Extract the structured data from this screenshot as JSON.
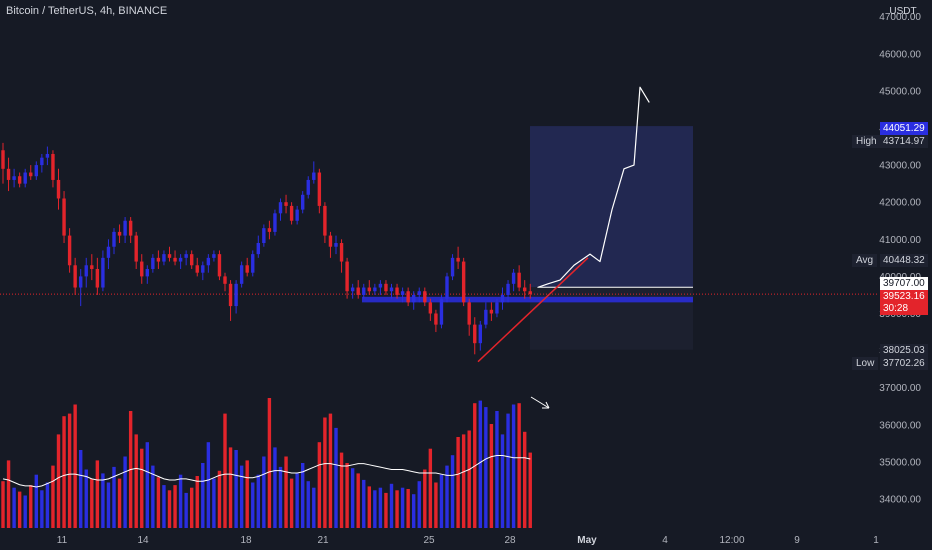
{
  "header": {
    "title": "Bitcoin / TetherUS, 4h, BINANCE",
    "currency": "USDT"
  },
  "price_labels": {
    "top": "44051.29",
    "high_name": "High",
    "high_value": "43714.97",
    "avg_name": "Avg",
    "avg_value": "40448.32",
    "target": "39707.00",
    "current": "39523.16",
    "countdown": "30:28",
    "stop": "38025.03",
    "low_name": "Low",
    "low_value": "37702.26"
  },
  "colors": {
    "background": "#161a25",
    "up": "#2a2ee0",
    "down": "#e3242b",
    "position_box": "#242a56",
    "zone_box": "#2a2ee0",
    "current_line": "#e3242b",
    "white": "#ffffff",
    "volume_ma": "#ffffff"
  },
  "chart_data": {
    "type": "candlestick",
    "symbol": "BTCUSDT",
    "interval": "4h",
    "y_ticks": [
      34000,
      35000,
      36000,
      37000,
      38000,
      39000,
      40000,
      41000,
      42000,
      43000,
      44000,
      45000,
      46000,
      47000
    ],
    "x_ticks": [
      "11",
      "14",
      "18",
      "21",
      "25",
      "28",
      "May",
      "4",
      "12:00",
      "9",
      "1"
    ],
    "current_price": 39523.16,
    "candles": [
      [
        43400,
        43600,
        42500,
        42900
      ],
      [
        42900,
        43200,
        42300,
        42600
      ],
      [
        42600,
        42900,
        42400,
        42700
      ],
      [
        42700,
        42800,
        42400,
        42500
      ],
      [
        42500,
        42900,
        42400,
        42800
      ],
      [
        42800,
        43000,
        42600,
        42700
      ],
      [
        42700,
        43100,
        42600,
        43000
      ],
      [
        43000,
        43300,
        42800,
        43200
      ],
      [
        43200,
        43500,
        43000,
        43300
      ],
      [
        43300,
        43400,
        42400,
        42600
      ],
      [
        42600,
        42900,
        41800,
        42100
      ],
      [
        42100,
        42300,
        40900,
        41100
      ],
      [
        41100,
        41300,
        40100,
        40300
      ],
      [
        40300,
        40500,
        39500,
        39700
      ],
      [
        39700,
        40200,
        39200,
        40000
      ],
      [
        40000,
        40500,
        39700,
        40300
      ],
      [
        40300,
        40600,
        39900,
        40200
      ],
      [
        40200,
        40500,
        39500,
        39700
      ],
      [
        39700,
        40700,
        39600,
        40500
      ],
      [
        40500,
        41000,
        40200,
        40800
      ],
      [
        40800,
        41300,
        40600,
        41200
      ],
      [
        41200,
        41400,
        40900,
        41100
      ],
      [
        41100,
        41600,
        40900,
        41500
      ],
      [
        41500,
        41600,
        40900,
        41100
      ],
      [
        41100,
        41200,
        40200,
        40400
      ],
      [
        40400,
        40600,
        39800,
        40000
      ],
      [
        40000,
        40300,
        39800,
        40200
      ],
      [
        40200,
        40600,
        40100,
        40500
      ],
      [
        40500,
        40700,
        40200,
        40400
      ],
      [
        40400,
        40700,
        40300,
        40600
      ],
      [
        40600,
        40800,
        40400,
        40500
      ],
      [
        40500,
        40700,
        40300,
        40400
      ],
      [
        40400,
        40600,
        40200,
        40500
      ],
      [
        40500,
        40700,
        40300,
        40600
      ],
      [
        40600,
        40700,
        40200,
        40300
      ],
      [
        40300,
        40500,
        40000,
        40100
      ],
      [
        40100,
        40400,
        39900,
        40300
      ],
      [
        40300,
        40600,
        40100,
        40500
      ],
      [
        40500,
        40700,
        40400,
        40600
      ],
      [
        40600,
        40700,
        39900,
        40000
      ],
      [
        40000,
        40100,
        39600,
        39800
      ],
      [
        39800,
        39900,
        38800,
        39200
      ],
      [
        39200,
        39900,
        39000,
        39800
      ],
      [
        39800,
        40400,
        39700,
        40300
      ],
      [
        40300,
        40500,
        40000,
        40100
      ],
      [
        40100,
        40700,
        40000,
        40600
      ],
      [
        40600,
        41100,
        40500,
        40900
      ],
      [
        40900,
        41400,
        40800,
        41300
      ],
      [
        41300,
        41500,
        41000,
        41200
      ],
      [
        41200,
        41800,
        41100,
        41700
      ],
      [
        41700,
        42100,
        41500,
        42000
      ],
      [
        42000,
        42200,
        41700,
        41900
      ],
      [
        41900,
        42000,
        41400,
        41500
      ],
      [
        41500,
        41900,
        41400,
        41800
      ],
      [
        41800,
        42300,
        41700,
        42200
      ],
      [
        42200,
        42700,
        42100,
        42600
      ],
      [
        42600,
        43100,
        42500,
        42800
      ],
      [
        42800,
        42900,
        41700,
        41900
      ],
      [
        41900,
        42000,
        40900,
        41100
      ],
      [
        41100,
        41200,
        40500,
        40800
      ],
      [
        40800,
        41100,
        40600,
        40900
      ],
      [
        40900,
        41000,
        40100,
        40400
      ],
      [
        40400,
        40500,
        39400,
        39600
      ],
      [
        39600,
        39800,
        39400,
        39700
      ],
      [
        39700,
        39900,
        39400,
        39500
      ],
      [
        39500,
        39800,
        39400,
        39700
      ],
      [
        39700,
        39900,
        39500,
        39600
      ],
      [
        39600,
        39800,
        39500,
        39700
      ],
      [
        39700,
        39900,
        39500,
        39800
      ],
      [
        39800,
        39900,
        39500,
        39600
      ],
      [
        39600,
        39800,
        39400,
        39700
      ],
      [
        39700,
        39800,
        39400,
        39500
      ],
      [
        39500,
        39700,
        39300,
        39600
      ],
      [
        39600,
        39700,
        39200,
        39300
      ],
      [
        39300,
        39600,
        39100,
        39500
      ],
      [
        39500,
        39700,
        39300,
        39600
      ],
      [
        39600,
        39700,
        39200,
        39300
      ],
      [
        39300,
        39400,
        38800,
        39000
      ],
      [
        39000,
        39100,
        38500,
        38700
      ],
      [
        38700,
        39500,
        38600,
        39400
      ],
      [
        39400,
        40100,
        39300,
        40000
      ],
      [
        40000,
        40600,
        39900,
        40500
      ],
      [
        40500,
        40800,
        40200,
        40400
      ],
      [
        40400,
        40500,
        39200,
        39300
      ],
      [
        39300,
        39400,
        38400,
        38700
      ],
      [
        38700,
        38900,
        37900,
        38200
      ],
      [
        38200,
        38800,
        38000,
        38700
      ],
      [
        38700,
        39300,
        38600,
        39100
      ],
      [
        39100,
        39300,
        38800,
        39000
      ],
      [
        39000,
        39400,
        38900,
        39300
      ],
      [
        39300,
        39700,
        39100,
        39500
      ],
      [
        39500,
        39900,
        39300,
        39800
      ],
      [
        39800,
        40200,
        39600,
        40100
      ],
      [
        40100,
        40300,
        39600,
        39700
      ],
      [
        39700,
        39900,
        39400,
        39600
      ],
      [
        39600,
        39800,
        39400,
        39523.16
      ]
    ],
    "volume_ma": [
      0.42,
      0.41,
      0.39,
      0.37,
      0.36,
      0.36,
      0.35,
      0.36,
      0.38,
      0.4,
      0.43,
      0.45,
      0.46,
      0.46,
      0.45,
      0.44,
      0.42,
      0.41,
      0.41,
      0.42,
      0.44,
      0.46,
      0.48,
      0.5,
      0.51,
      0.5,
      0.48,
      0.46,
      0.44,
      0.42,
      0.41,
      0.41,
      0.42,
      0.42,
      0.41,
      0.4,
      0.4,
      0.41,
      0.43,
      0.45,
      0.46,
      0.46,
      0.45,
      0.44,
      0.43,
      0.43,
      0.44,
      0.46,
      0.48,
      0.49,
      0.49,
      0.48,
      0.47,
      0.47,
      0.48,
      0.5,
      0.52,
      0.54,
      0.55,
      0.55,
      0.54,
      0.53,
      0.53,
      0.54,
      0.55,
      0.55,
      0.54,
      0.53,
      0.52,
      0.51,
      0.5,
      0.5,
      0.5,
      0.49,
      0.48,
      0.47,
      0.47,
      0.47,
      0.47,
      0.46,
      0.45,
      0.45,
      0.46,
      0.48,
      0.5,
      0.53,
      0.56,
      0.59,
      0.61,
      0.62,
      0.62,
      0.61,
      0.6,
      0.6,
      0.6,
      0.59
    ],
    "volume": [
      0.36,
      0.52,
      0.31,
      0.28,
      0.25,
      0.33,
      0.41,
      0.29,
      0.35,
      0.48,
      0.72,
      0.86,
      0.88,
      0.95,
      0.6,
      0.45,
      0.38,
      0.52,
      0.42,
      0.35,
      0.47,
      0.38,
      0.55,
      0.9,
      0.72,
      0.61,
      0.66,
      0.48,
      0.39,
      0.33,
      0.29,
      0.33,
      0.41,
      0.27,
      0.31,
      0.4,
      0.5,
      0.66,
      0.38,
      0.44,
      0.88,
      0.62,
      0.6,
      0.48,
      0.52,
      0.35,
      0.41,
      0.55,
      1.0,
      0.62,
      0.47,
      0.55,
      0.38,
      0.42,
      0.5,
      0.36,
      0.31,
      0.66,
      0.85,
      0.88,
      0.77,
      0.58,
      0.5,
      0.46,
      0.42,
      0.37,
      0.32,
      0.29,
      0.31,
      0.27,
      0.34,
      0.29,
      0.31,
      0.3,
      0.26,
      0.36,
      0.45,
      0.61,
      0.35,
      0.41,
      0.48,
      0.56,
      0.7,
      0.72,
      0.75,
      0.96,
      0.98,
      0.93,
      0.8,
      0.9,
      0.72,
      0.88,
      0.95,
      0.96,
      0.74,
      0.58
    ]
  },
  "drawings": {
    "position_box": {
      "entry": 39707,
      "target": 44051.29,
      "stop": 38025.03
    },
    "trendline": {
      "from": 37702.26,
      "to": 40500
    },
    "forecast_path": [
      39707,
      39800,
      39900,
      40300,
      40600,
      40400,
      41800,
      42900,
      43000,
      45100,
      44700
    ],
    "zone": {
      "top": 39450,
      "bottom": 39300
    }
  }
}
